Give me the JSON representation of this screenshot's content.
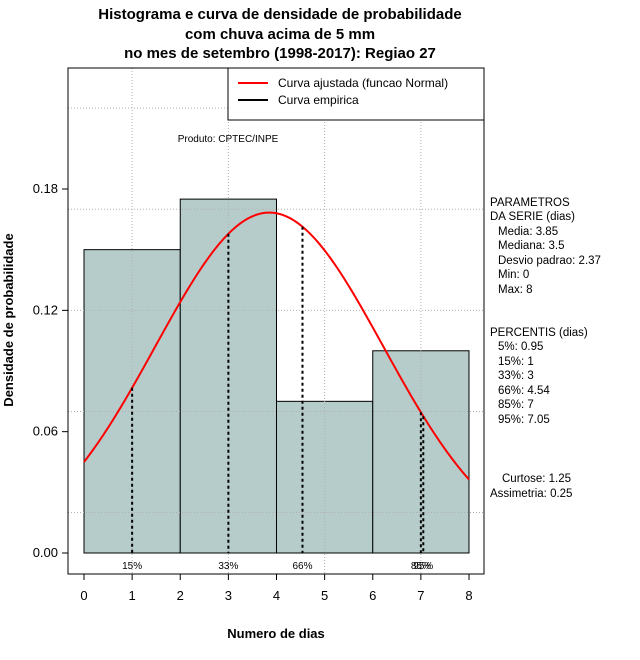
{
  "title": {
    "line1": "Histograma e curva de densidade de probabilidade",
    "line2": "com chuva acima de 5 mm",
    "line3": "no mes de setembro (1998-2017): Regiao 27"
  },
  "credit": "Produto: CPTEC/INPE",
  "legend": {
    "entries": [
      {
        "label": "Curva ajustada (funcao Normal)",
        "color": "#ff0000"
      },
      {
        "label": "Curva empirica",
        "color": "#000000"
      }
    ]
  },
  "parameters": {
    "header1": "PARAMETROS",
    "header2": "DA SERIE (dias)",
    "lines": [
      "Media: 3.85",
      "Mediana: 3.5",
      "Desvio padrao: 2.37",
      "Min: 0",
      "Max: 8"
    ]
  },
  "percentiles_block": {
    "header": "PERCENTIS (dias)",
    "lines": [
      "5%: 0.95",
      "15%: 1",
      "33%: 3",
      "66%: 4.54",
      "85%: 7",
      "95%: 7.05"
    ]
  },
  "shape_stats": {
    "curtose": "Curtose: 1.25",
    "assimetria": "Assimetria: 0.25"
  },
  "chart_data": {
    "type": "bar",
    "xlabel": "Numero de dias",
    "ylabel": "Densidade de probabilidade",
    "xlim": [
      0,
      8
    ],
    "ylim": [
      0,
      0.18
    ],
    "xticks": [
      0,
      1,
      2,
      3,
      4,
      5,
      6,
      7,
      8
    ],
    "yticks": [
      "0.00",
      "0.06",
      "0.12",
      "0.18"
    ],
    "bins": [
      {
        "start": 0,
        "end": 2,
        "density": 0.15
      },
      {
        "start": 2,
        "end": 4,
        "density": 0.175
      },
      {
        "start": 4,
        "end": 6,
        "density": 0.075
      },
      {
        "start": 6,
        "end": 8,
        "density": 0.1
      }
    ],
    "bar_color": "#b5cccb",
    "normal_fit": {
      "mean": 3.85,
      "sd": 2.37,
      "color": "#ff0000"
    },
    "percentile_lines": [
      {
        "label": "15%",
        "x": 1
      },
      {
        "label": "33%",
        "x": 3
      },
      {
        "label": "66%",
        "x": 4.54
      },
      {
        "label": "85%",
        "x": 7
      },
      {
        "label": "95%",
        "x": 7.05
      }
    ],
    "grid": true
  }
}
